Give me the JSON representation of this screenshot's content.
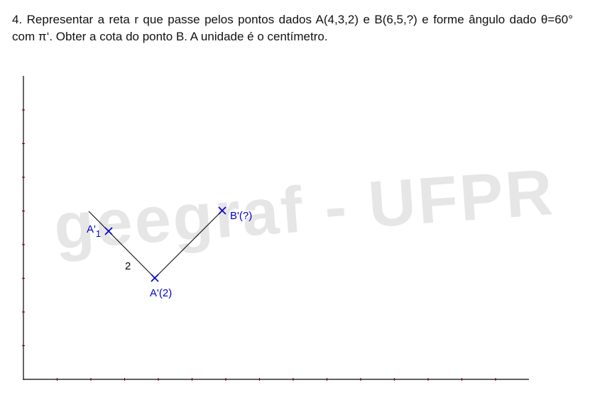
{
  "problem": {
    "text": "4. Representar a reta r que passe pelos pontos dados A(4,3,2) e B(6,5,?) e forme ângulo dado θ=60° com π‘. Obter a cota do ponto B. A unidade é o centímetro."
  },
  "watermark": "geegraf - UFPR",
  "labels": {
    "a1": {
      "text": "A'",
      "subscript": "1"
    },
    "segment": "2",
    "a": "A'(2)",
    "b": "B'(?)"
  }
}
